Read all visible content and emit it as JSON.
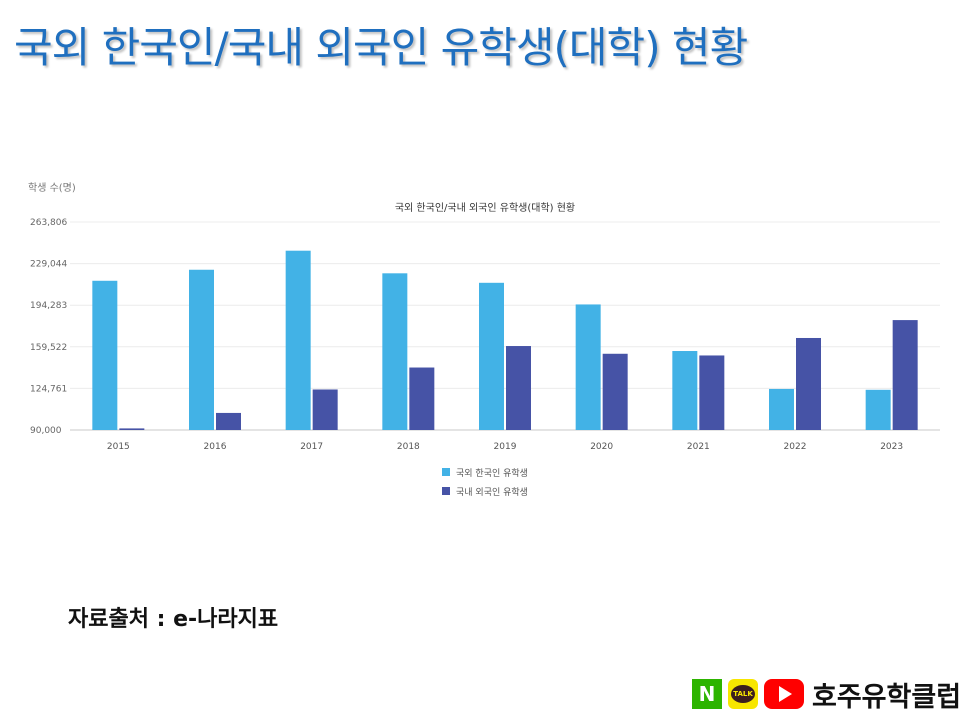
{
  "slide": {
    "title": "국외 한국인/국내 외국인 유학생(대학) 현황",
    "source": "자료출처 : e-나라지표"
  },
  "brand": {
    "name": "호주유학클럽",
    "n_badge": "N",
    "talk_badge": "TALK",
    "icons": [
      "naver-icon",
      "kakaotalk-icon",
      "youtube-icon"
    ]
  },
  "chart_data": {
    "type": "bar",
    "title": "국외 한국인/국내 외국인 유학생(대학) 현황",
    "ylabel": "학생 수(명)",
    "xlabel": "",
    "categories": [
      "2015",
      "2016",
      "2017",
      "2018",
      "2019",
      "2020",
      "2021",
      "2022",
      "2023"
    ],
    "series": [
      {
        "name": "국외 한국인 유학생",
        "color": "#42b2e6",
        "values": [
          214696,
          223908,
          239824,
          220930,
          213000,
          194916,
          156000,
          124320,
          123600
        ]
      },
      {
        "name": "국내 외국인 유학생",
        "color": "#4653a6",
        "values": [
          91332,
          104262,
          123858,
          142205,
          160165,
          153695,
          152281,
          166892,
          181842
        ]
      }
    ],
    "yticks": [
      "90,000",
      "124,761",
      "159,522",
      "194,283",
      "229,044",
      "263,806"
    ],
    "ylim": [
      90000,
      263806
    ],
    "grid": true,
    "legend_position": "bottom"
  }
}
